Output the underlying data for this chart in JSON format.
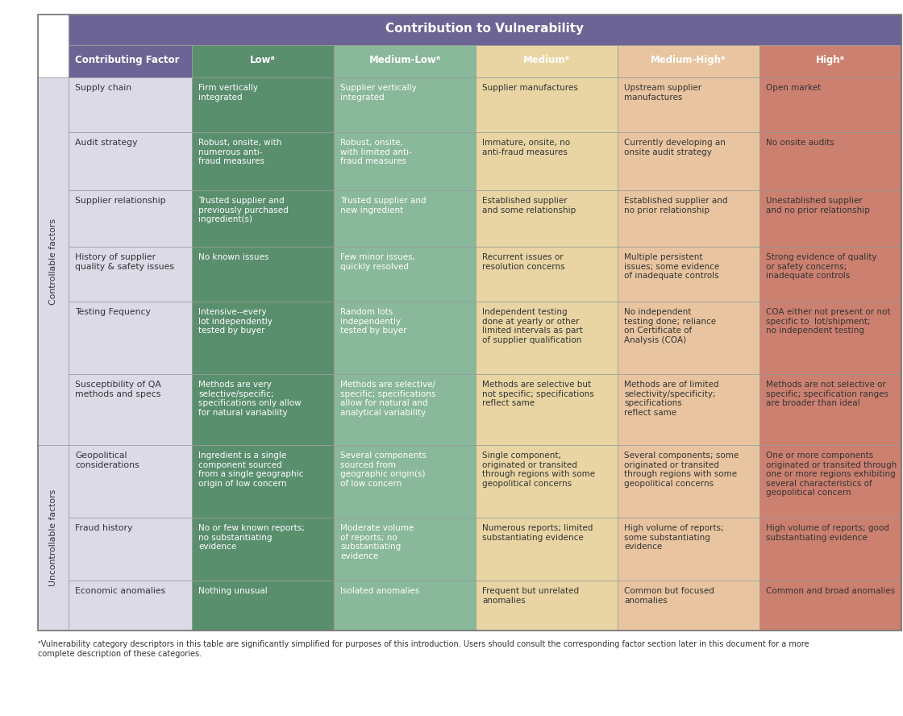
{
  "title": "Contribution to Vulnerability",
  "col_header_bg": "#6b6494",
  "col_header_text": "#ffffff",
  "contributing_factor_header": "Contributing Factor",
  "controllable_label": "Controllable factors",
  "uncontrollable_label": "Uncontrollable factors",
  "col_colors": [
    "#5a8f6e",
    "#8ab89a",
    "#e8d5a3",
    "#e8c5a0",
    "#cc8070"
  ],
  "col_headers": [
    "Lowᵃ",
    "Medium-Lowᵃ",
    "Mediumᵃ",
    "Medium-Highᵃ",
    "Highᵃ"
  ],
  "factor_bg": "#dddae8",
  "group_bg": "#dddae8",
  "rows": [
    {
      "factor": "Supply chain",
      "group": "controllable",
      "cells": [
        "Firm vertically\nintegrated",
        "Supplier vertically\nintegrated",
        "Supplier manufactures",
        "Upstream supplier\nmanufactures",
        "Open market"
      ]
    },
    {
      "factor": "Audit strategy",
      "group": "controllable",
      "cells": [
        "Robust, onsite, with\nnumerous anti-\nfraud measures",
        "Robust, onsite,\nwith limited anti-\nfraud measures",
        "Immature, onsite, no\nanti-fraud measures",
        "Currently developing an\nonsite audit strategy",
        "No onsite audits"
      ]
    },
    {
      "factor": "Supplier relationship",
      "group": "controllable",
      "cells": [
        "Trusted supplier and\npreviously purchased\ningredient(s)",
        "Trusted supplier and\nnew ingredient",
        "Established supplier\nand some relationship",
        "Established supplier and\nno prior relationship",
        "Unestablished supplier\nand no prior relationship"
      ]
    },
    {
      "factor": "History of supplier\nquality & safety issues",
      "group": "controllable",
      "cells": [
        "No known issues",
        "Few minor issues,\nquickly resolved",
        "Recurrent issues or\nresolution concerns",
        "Multiple persistent\nissues; some evidence\nof inadequate controls",
        "Strong evidence of quality\nor safety concerns;\ninadequate controls"
      ]
    },
    {
      "factor": "Testing Fequency",
      "group": "controllable",
      "cells": [
        "Intensive--every\nlot independently\ntested by buyer",
        "Random lots\nindependently\ntested by buyer",
        "Independent testing\ndone at yearly or other\nlimited intervals as part\nof supplier qualification",
        "No independent\ntesting done; reliance\non Certificate of\nAnalysis (COA)",
        "COA either not present or not\nspecific to  lot/shipment;\nno independent testing"
      ]
    },
    {
      "factor": "Susceptibility of QA\nmethods and specs",
      "group": "controllable",
      "cells": [
        "Methods are very\nselective/specific;\nspecifications only allow\nfor natural variability",
        "Methods are selective/\nspecific; specifications\nallow for natural and\nanalytical variability",
        "Methods are selective but\nnot specific; specifications\nreflect same",
        "Methods are of limited\nselectivity/specificity;\nspecifications\nreflect same",
        "Methods are not selective or\nspecific; specification ranges\nare broader than ideal"
      ]
    },
    {
      "factor": "Geopolitical\nconsiderations",
      "group": "uncontrollable",
      "cells": [
        "Ingredient is a single\ncomponent sourced\nfrom a single geographic\norigin of low concern",
        "Several components\nsourced from\ngeographic origin(s)\nof low concern",
        "Single component;\noriginated or transited\nthrough regions with some\ngeopolitical concerns",
        "Several components; some\noriginated or transited\nthrough regions with some\ngeopolitical concerns",
        "One or more components\noriginated or transited through\none or more regions exhibiting\nseveral characteristics of\ngeopolitical concern"
      ]
    },
    {
      "factor": "Fraud history",
      "group": "uncontrollable",
      "cells": [
        "No or few known reports;\nno substantiating\nevidence",
        "Moderate volume\nof reports; no\nsubstantiating\nevidence",
        "Numerous reports; limited\nsubstantiating evidence",
        "High volume of reports;\nsome substantiating\nevidence",
        "High volume of reports; good\nsubstantiating evidence"
      ]
    },
    {
      "factor": "Economic anomalies",
      "group": "uncontrollable",
      "cells": [
        "Nothing unusual",
        "Isolated anomalies",
        "Frequent but unrelated\nanomalies",
        "Common but focused\nanomalies",
        "Common and broad anomalies"
      ]
    }
  ],
  "footnote": "ᵃVulnerability category descriptors in this table are significantly simplified for purposes of this introduction. Users should consult the corresponding factor section later in this document for a more\ncomplete description of these categories."
}
